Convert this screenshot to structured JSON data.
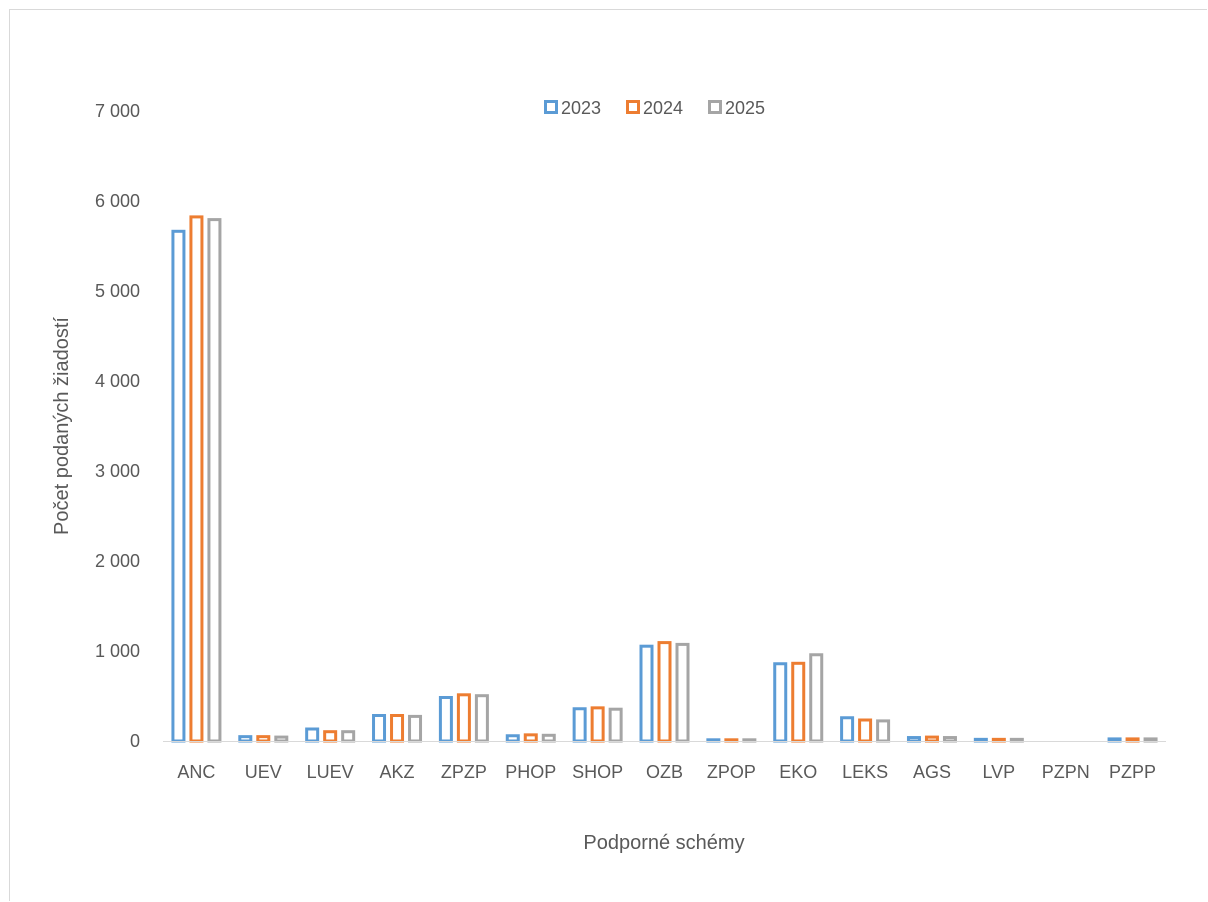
{
  "chart_data": {
    "type": "bar",
    "categories": [
      "ANC",
      "UEV",
      "LUEV",
      "AKZ",
      "ZPZP",
      "PHOP",
      "SHOP",
      "OZB",
      "ZPOP",
      "EKO",
      "LEKS",
      "AGS",
      "LVP",
      "PZPN",
      "PZPP"
    ],
    "series": [
      {
        "name": "2023",
        "color": "#5b9bd5",
        "values": [
          5680,
          65,
          150,
          300,
          500,
          75,
          375,
          1070,
          30,
          875,
          275,
          55,
          35,
          0,
          40
        ]
      },
      {
        "name": "2024",
        "color": "#ed7d31",
        "values": [
          5840,
          65,
          120,
          300,
          530,
          85,
          385,
          1110,
          30,
          880,
          250,
          60,
          35,
          0,
          40
        ]
      },
      {
        "name": "2025",
        "color": "#a5a5a5",
        "values": [
          5810,
          60,
          120,
          290,
          520,
          80,
          370,
          1090,
          30,
          975,
          240,
          55,
          35,
          0,
          40
        ]
      }
    ],
    "title": "",
    "xlabel": "Podporné schémy",
    "ylabel": "Počet podaných žiadostí",
    "ylim": [
      0,
      7000
    ],
    "yticks": [
      "0",
      "1 000",
      "2 000",
      "3 000",
      "4 000",
      "5 000",
      "6 000",
      "7 000"
    ],
    "legend_position": "top",
    "grid": false
  }
}
